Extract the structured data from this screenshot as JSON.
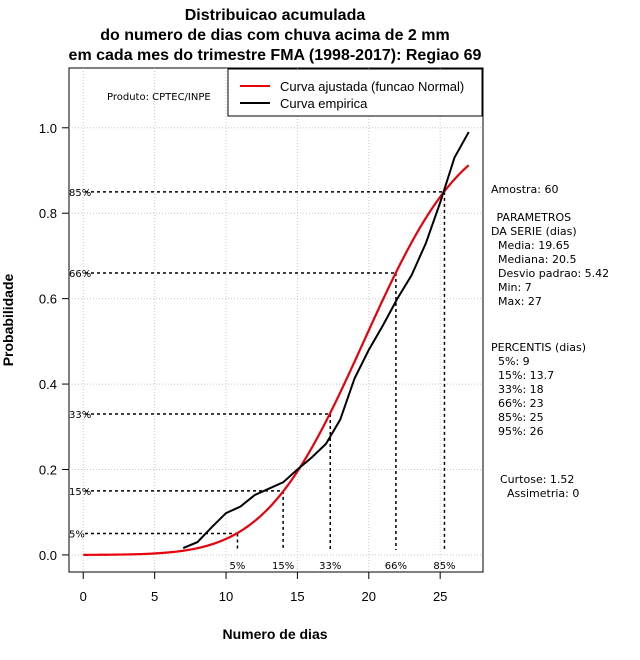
{
  "chart_data": {
    "type": "line",
    "title": [
      "Distribuicao acumulada",
      "do numero de dias com chuva acima de 2 mm",
      "em cada mes do trimestre FMA (1998-2017): Regiao 69"
    ],
    "xlabel": "Numero de dias",
    "ylabel": "Probabilidade",
    "xlim": [
      -1,
      28
    ],
    "ylim": [
      -0.04,
      1.14
    ],
    "xticks": [
      0,
      5,
      10,
      15,
      20,
      25
    ],
    "yticks": [
      0.0,
      0.2,
      0.4,
      0.6,
      0.8,
      1.0
    ],
    "ytick_labels": [
      "0.0",
      "0.2",
      "0.4",
      "0.6",
      "0.8",
      "1.0"
    ],
    "grid": true,
    "credit": "Produto: CPTEC/INPE",
    "legend": {
      "position": "top-right",
      "items": [
        {
          "label": "Curva ajustada (funcao Normal)",
          "color": "#e8000b"
        },
        {
          "label": "Curva empirica",
          "color": "#000000"
        }
      ]
    },
    "normal_fit": {
      "name": "Curva ajustada (funcao Normal)",
      "mean": 19.65,
      "sd": 5.42,
      "x_range": [
        0,
        27
      ],
      "color": "#e8000b"
    },
    "series": [
      {
        "name": "Curva empirica",
        "color": "#000000",
        "x": [
          7,
          8,
          9,
          10,
          11,
          12,
          13,
          14,
          15,
          16,
          17,
          18,
          19,
          20,
          21,
          22,
          23,
          24,
          25,
          26,
          27
        ],
        "y": [
          0.016,
          0.03,
          0.065,
          0.098,
          0.113,
          0.14,
          0.155,
          0.17,
          0.2,
          0.228,
          0.26,
          0.317,
          0.413,
          0.48,
          0.538,
          0.6,
          0.655,
          0.73,
          0.825,
          0.93,
          0.99
        ]
      }
    ],
    "percentile_markers": [
      {
        "label": "5%",
        "p": 0.05,
        "x": 10.8
      },
      {
        "label": "15%",
        "p": 0.15,
        "x": 14.0
      },
      {
        "label": "33%",
        "p": 0.33,
        "x": 17.3
      },
      {
        "label": "66%",
        "p": 0.66,
        "x": 21.9
      },
      {
        "label": "85%",
        "p": 0.85,
        "x": 25.3
      }
    ],
    "side_text": [
      "Amostra: 60",
      " PARAMETROS",
      "DA SERIE (dias)",
      "  Media: 19.65",
      "  Mediana: 20.5",
      "  Desvio padrao: 5.42",
      "  Min: 7",
      "  Max: 27",
      "PERCENTIS (dias)",
      "  5%: 9",
      "  15%: 13.7",
      "  33%: 18",
      "  66%: 23",
      "  85%: 25",
      "  95%: 26",
      "Curtose: 1.52",
      "  Assimetria: 0"
    ]
  }
}
